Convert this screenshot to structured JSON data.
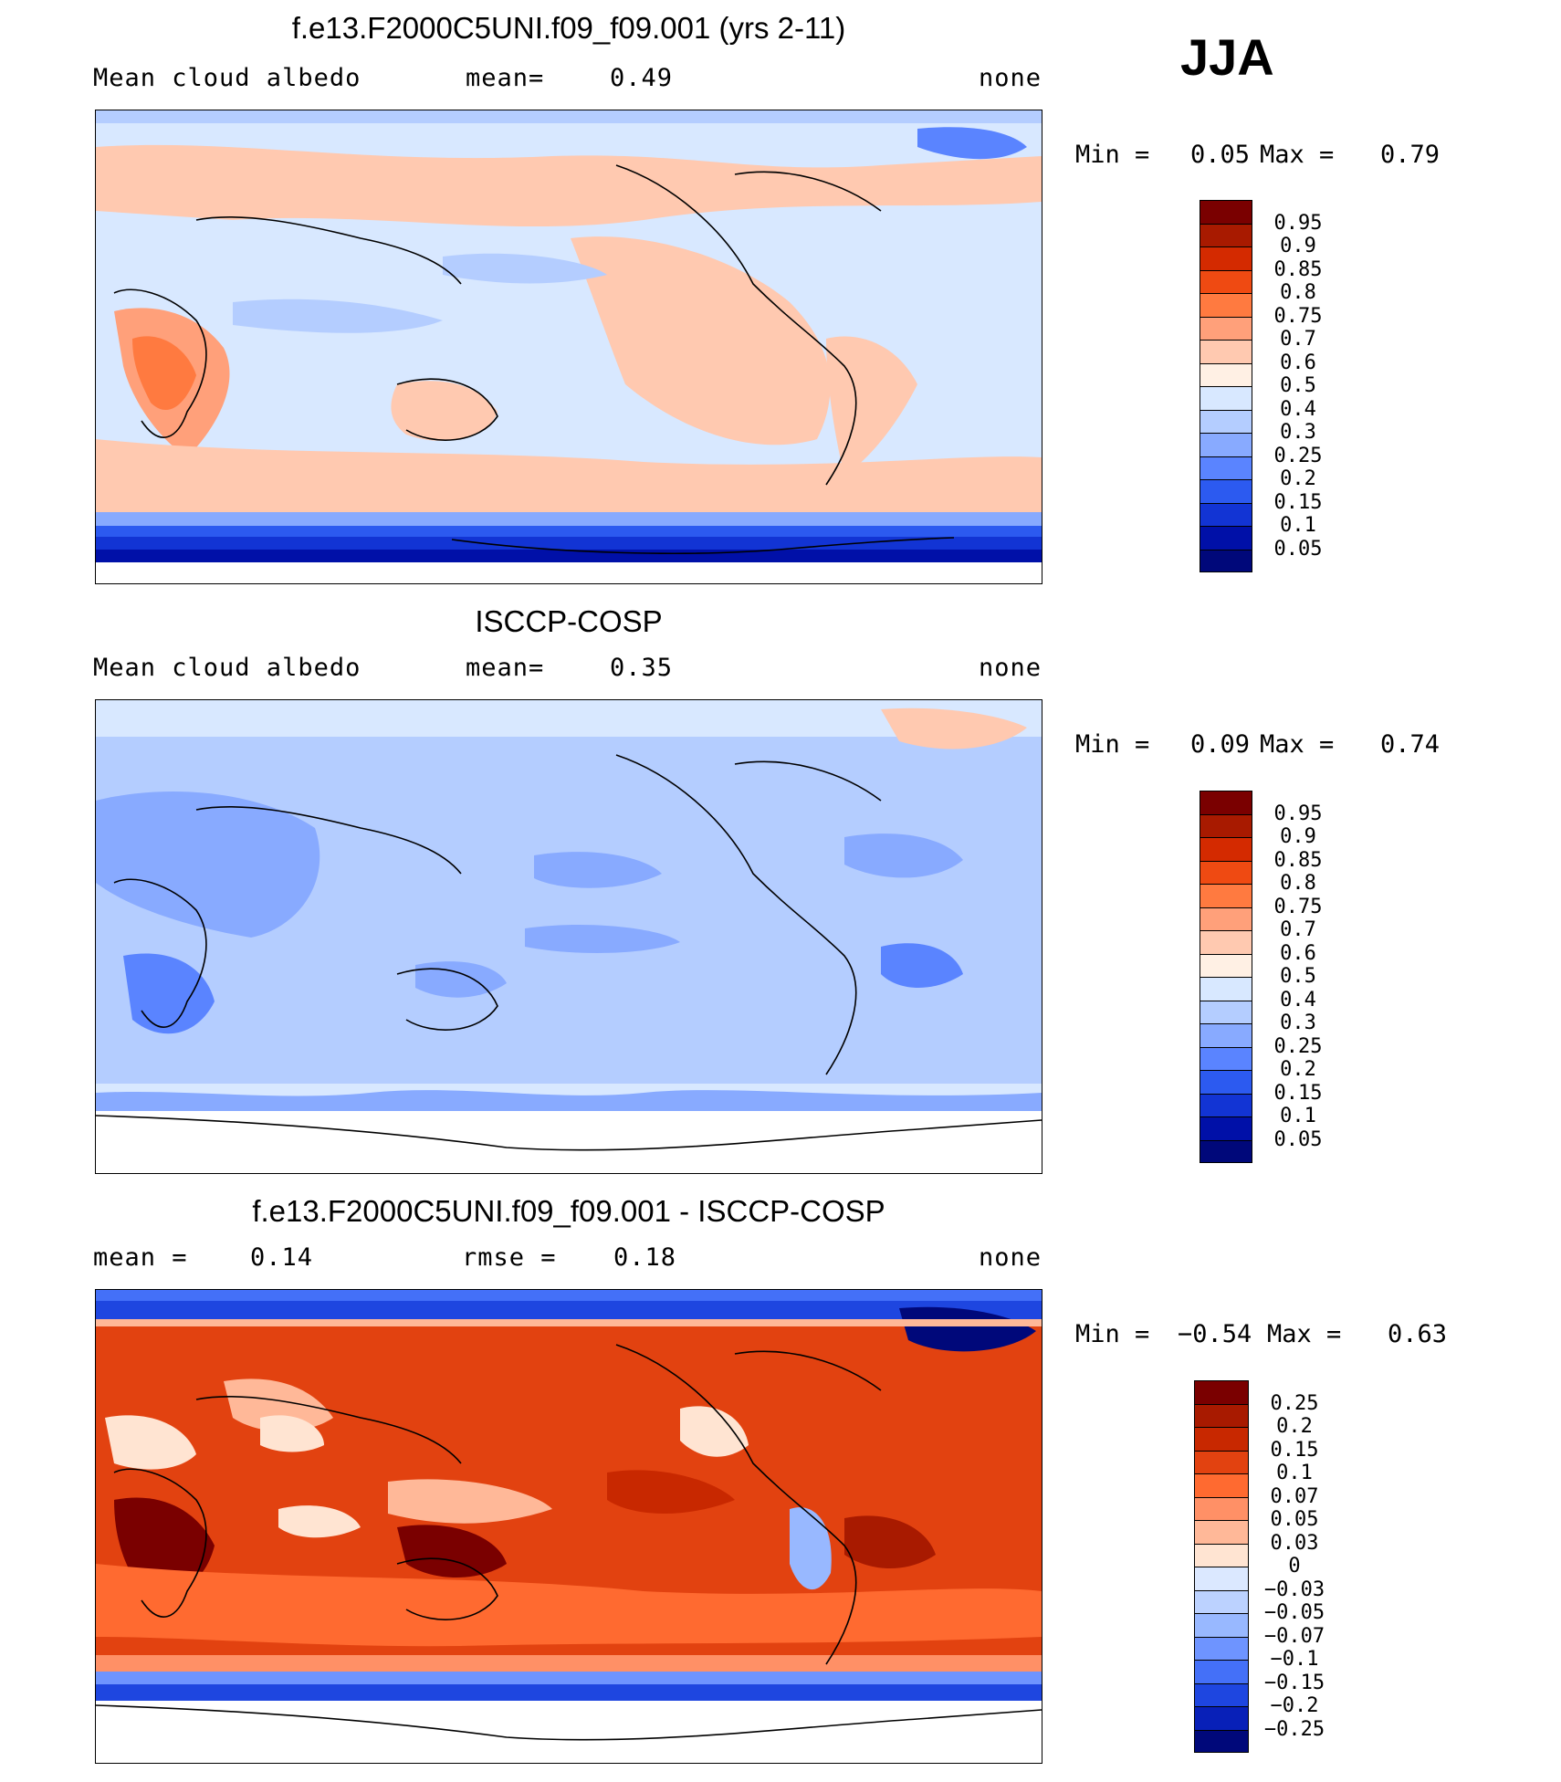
{
  "season": "JJA",
  "panels": [
    {
      "title": "f.e13.F2000C5UNI.f09_f09.001 (yrs 2-11)",
      "left_label": "Mean cloud albedo",
      "mid_label": "mean=",
      "mid_value": "0.49",
      "right_label": "none",
      "min_label": "Min =",
      "min_value": "0.05",
      "max_label": "Max =",
      "max_value": "0.79",
      "cbar_labels": [
        "0.95",
        "0.9",
        "0.85",
        "0.8",
        "0.75",
        "0.7",
        "0.6",
        "0.5",
        "0.4",
        "0.3",
        "0.25",
        "0.2",
        "0.15",
        "0.1",
        "0.05"
      ],
      "cbar_colors": [
        "#7a0000",
        "#a81a00",
        "#d42a00",
        "#ef4a12",
        "#ff7a40",
        "#ffa07a",
        "#ffc9b0",
        "#fff0e4",
        "#d8e8ff",
        "#b4cdff",
        "#88aaff",
        "#5a84ff",
        "#2c5af0",
        "#1234d4",
        "#0010a8",
        "#00087a"
      ]
    },
    {
      "title": "ISCCP-COSP",
      "left_label": "Mean cloud albedo",
      "mid_label": "mean=",
      "mid_value": "0.35",
      "right_label": "none",
      "min_label": "Min =",
      "min_value": "0.09",
      "max_label": "Max =",
      "max_value": "0.74",
      "cbar_labels": [
        "0.95",
        "0.9",
        "0.85",
        "0.8",
        "0.75",
        "0.7",
        "0.6",
        "0.5",
        "0.4",
        "0.3",
        "0.25",
        "0.2",
        "0.15",
        "0.1",
        "0.05"
      ],
      "cbar_colors": [
        "#7a0000",
        "#a81a00",
        "#d42a00",
        "#ef4a12",
        "#ff7a40",
        "#ffa07a",
        "#ffc9b0",
        "#fff0e4",
        "#d8e8ff",
        "#b4cdff",
        "#88aaff",
        "#5a84ff",
        "#2c5af0",
        "#1234d4",
        "#0010a8",
        "#00087a"
      ]
    },
    {
      "title": "f.e13.F2000C5UNI.f09_f09.001 - ISCCP-COSP",
      "left_label": "mean =",
      "left_value": "0.14",
      "mid_label": "rmse =",
      "mid_value": "0.18",
      "right_label": "none",
      "min_label": "Min =",
      "min_value": "−0.54",
      "max_label": "Max =",
      "max_value": "0.63",
      "cbar_labels": [
        "0.25",
        "0.2",
        "0.15",
        "0.1",
        "0.07",
        "0.05",
        "0.03",
        "0",
        "−0.03",
        "−0.05",
        "−0.07",
        "−0.1",
        "−0.15",
        "−0.2",
        "−0.25"
      ],
      "cbar_colors": [
        "#7a0000",
        "#a81a00",
        "#c82800",
        "#e24210",
        "#ff6a30",
        "#ff9066",
        "#ffb898",
        "#ffe4d2",
        "#dbe8ff",
        "#bcd2ff",
        "#98b8ff",
        "#6e94ff",
        "#4470f8",
        "#1e46e0",
        "#0820b8",
        "#00087a"
      ]
    }
  ]
}
